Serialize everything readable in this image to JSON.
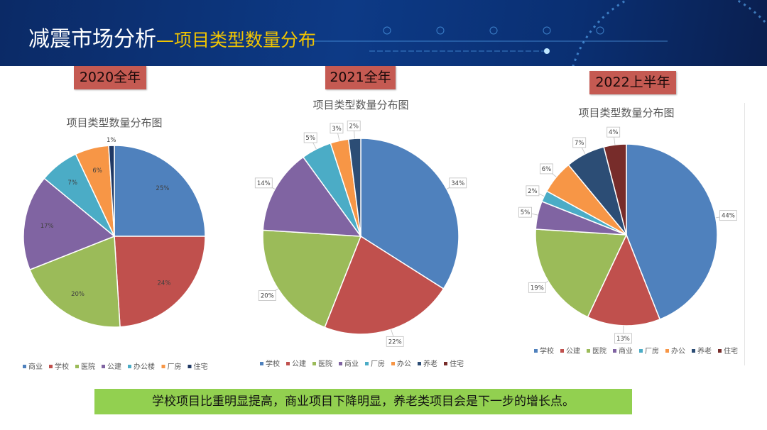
{
  "header": {
    "title_main": "减震市场分析",
    "title_sub": "—项目类型数量分布"
  },
  "years": [
    "2020全年",
    "2021全年",
    "2022上半年"
  ],
  "note": "学校项目比重明显提高，商业项目下降明显，养老类项目会是下一步的增长点。",
  "chart_data": [
    {
      "type": "pie",
      "title": "项目类型数量分布图",
      "period": "2020全年",
      "categories": [
        "商业",
        "学校",
        "医院",
        "公建",
        "办公楼",
        "厂房",
        "住宅"
      ],
      "values": [
        25,
        24,
        20,
        17,
        7,
        6,
        1
      ],
      "colors": [
        "#4f81bd",
        "#c0504d",
        "#9bbb59",
        "#8064a2",
        "#4bacc6",
        "#f79646",
        "#1f3864"
      ],
      "labels_inside": true,
      "legend": "bottom"
    },
    {
      "type": "pie",
      "title": "项目类型数量分布图",
      "period": "2021全年",
      "categories": [
        "学校",
        "公建",
        "医院",
        "商业",
        "厂房",
        "办公",
        "养老",
        "住宅"
      ],
      "values": [
        34,
        22,
        20,
        14,
        5,
        3,
        2,
        0
      ],
      "colors": [
        "#4f81bd",
        "#c0504d",
        "#9bbb59",
        "#8064a2",
        "#4bacc6",
        "#f79646",
        "#2c4d75",
        "#772c2a"
      ],
      "labels_inside": false,
      "legend": "bottom"
    },
    {
      "type": "pie",
      "title": "项目类型数量分布图",
      "period": "2022上半年",
      "categories": [
        "学校",
        "公建",
        "医院",
        "商业",
        "厂房",
        "办公",
        "养老",
        "住宅"
      ],
      "values": [
        44,
        13,
        19,
        5,
        2,
        6,
        7,
        4
      ],
      "colors": [
        "#4f81bd",
        "#c0504d",
        "#9bbb59",
        "#8064a2",
        "#4bacc6",
        "#f79646",
        "#2c4d75",
        "#772c2a"
      ],
      "labels_inside": false,
      "legend": "bottom"
    }
  ]
}
